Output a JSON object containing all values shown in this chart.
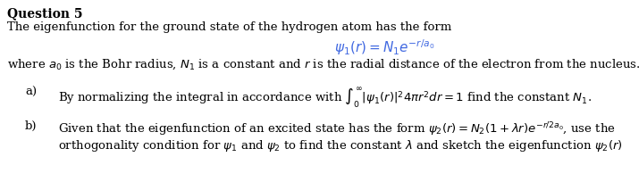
{
  "title": "Question 5",
  "line1": "The eigenfunction for the ground state of the hydrogen atom has the form",
  "equation1": "$\\psi_1(r) = N_1e^{-r/a_0}$",
  "line2": "where $a_0$ is the Bohr radius, $N_1$ is a constant and $r$ is the radial distance of the electron from the nucleus.",
  "part_a_label": "a)",
  "part_a_body": "By normalizing the integral in accordance with $\\int_0^{\\infty}|\\psi_1(r)|^2 4\\pi r^2 dr = 1$ find the constant $N_1$.",
  "part_b_label": "b)",
  "part_b_line1": "Given that the eigenfunction of an excited state has the form $\\psi_2(r) = N_2(1+ \\lambda r)e^{-r/2a_0}$, use the",
  "part_b_line2": "orthogonality condition for $\\psi_1$ and $\\psi_2$ to find the constant $\\lambda$ and sketch the eigenfunction $\\psi_2(r)$",
  "bg_color": "#ffffff",
  "text_color": "#000000",
  "eq_color": "#4169E1",
  "title_fontsize": 10,
  "body_fontsize": 9.5,
  "eq_fontsize": 11
}
